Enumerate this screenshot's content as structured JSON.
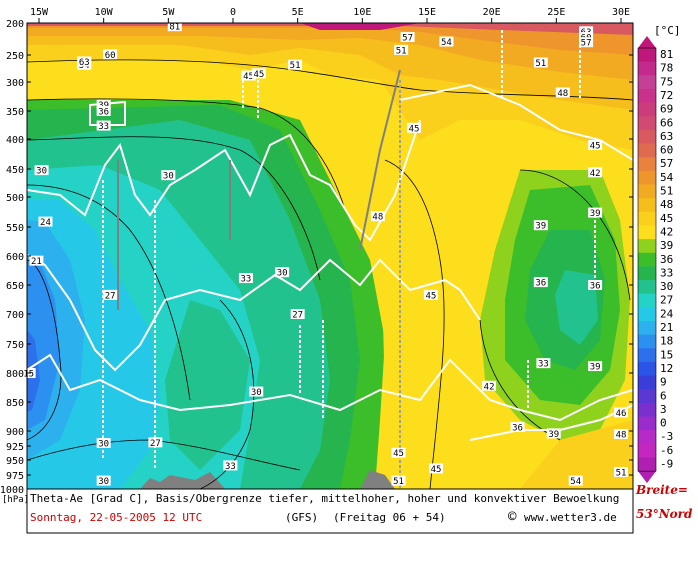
{
  "chart_data": {
    "type": "heatmap",
    "x_ticks": [
      "15W",
      "10W",
      "5W",
      "0",
      "5E",
      "10E",
      "15E",
      "20E",
      "25E",
      "30E"
    ],
    "y_ticks": [
      "200",
      "250",
      "300",
      "350",
      "400",
      "450",
      "500",
      "550",
      "600",
      "650",
      "700",
      "750",
      "800",
      "850",
      "900",
      "925",
      "950",
      "975",
      "1000"
    ],
    "y_unit": "[hPa]",
    "colorbar_unit": "[°C]",
    "colorbar_values": [
      "81",
      "78",
      "75",
      "72",
      "69",
      "66",
      "63",
      "60",
      "57",
      "54",
      "51",
      "48",
      "45",
      "42",
      "39",
      "36",
      "33",
      "30",
      "27",
      "24",
      "21",
      "18",
      "15",
      "12",
      "9",
      "6",
      "3",
      "0",
      "-3",
      "-6",
      "-9"
    ],
    "colorbar_colors": [
      "#c0187a",
      "#c42a8c",
      "#c44096",
      "#c8328a",
      "#cc3c7c",
      "#d04a74",
      "#d85a60",
      "#e06a50",
      "#e8823c",
      "#ee962c",
      "#f2aa22",
      "#f6be1c",
      "#fad01c",
      "#fcde1c",
      "#8ed21e",
      "#3cbe2a",
      "#26b44e",
      "#22c28e",
      "#24d2c6",
      "#26c8e8",
      "#2cb0ee",
      "#2c90f0",
      "#2c70ec",
      "#2c54e6",
      "#3a3ed8",
      "#5a38d2",
      "#7a30ce",
      "#9a2ccc",
      "#b82ac8",
      "#c426c0",
      "#b020b0"
    ],
    "contour_labels": [
      {
        "t": "81",
        "x": -4.5,
        "p": 205
      },
      {
        "t": "57",
        "x": 13.5,
        "p": 222
      },
      {
        "t": "54",
        "x": 16.5,
        "p": 229
      },
      {
        "t": "51",
        "x": 13.0,
        "p": 242
      },
      {
        "t": "54",
        "x": -11.5,
        "p": 268
      },
      {
        "t": "63",
        "x": -11.5,
        "p": 262
      },
      {
        "t": "60",
        "x": -9.5,
        "p": 249
      },
      {
        "t": "63",
        "x": 27.3,
        "p": 213
      },
      {
        "t": "60",
        "x": 27.3,
        "p": 222
      },
      {
        "t": "57",
        "x": 27.3,
        "p": 230
      },
      {
        "t": "51",
        "x": 23.8,
        "p": 264
      },
      {
        "t": "48",
        "x": 25.5,
        "p": 318
      },
      {
        "t": "51",
        "x": 4.8,
        "p": 268
      },
      {
        "t": "45",
        "x": 1.2,
        "p": 288
      },
      {
        "t": "45",
        "x": 2.0,
        "p": 284
      },
      {
        "t": "45",
        "x": 14.0,
        "p": 380
      },
      {
        "t": "39",
        "x": -10.0,
        "p": 339
      },
      {
        "t": "36",
        "x": -10.0,
        "p": 350
      },
      {
        "t": "33",
        "x": -10.0,
        "p": 376
      },
      {
        "t": "30",
        "x": -14.8,
        "p": 452
      },
      {
        "t": "30",
        "x": -5.0,
        "p": 461
      },
      {
        "t": "24",
        "x": -14.5,
        "p": 541
      },
      {
        "t": "21",
        "x": -15.2,
        "p": 608
      },
      {
        "t": "27",
        "x": -9.5,
        "p": 667
      },
      {
        "t": "48",
        "x": 11.2,
        "p": 532
      },
      {
        "t": "45",
        "x": 28.0,
        "p": 410
      },
      {
        "t": "42",
        "x": 28.0,
        "p": 456
      },
      {
        "t": "39",
        "x": 28.0,
        "p": 526
      },
      {
        "t": "39",
        "x": 23.8,
        "p": 547
      },
      {
        "t": "36",
        "x": 23.8,
        "p": 645
      },
      {
        "t": "36",
        "x": 28.0,
        "p": 650
      },
      {
        "t": "33",
        "x": 1.0,
        "p": 638
      },
      {
        "t": "30",
        "x": 3.8,
        "p": 628
      },
      {
        "t": "27",
        "x": 5.0,
        "p": 700
      },
      {
        "t": "45",
        "x": 15.3,
        "p": 667
      },
      {
        "t": "33",
        "x": 24.0,
        "p": 783
      },
      {
        "t": "39",
        "x": 28.0,
        "p": 788
      },
      {
        "t": "42",
        "x": 19.8,
        "p": 822
      },
      {
        "t": "36",
        "x": 22.0,
        "p": 893
      },
      {
        "t": "39",
        "x": 24.8,
        "p": 904
      },
      {
        "t": "46",
        "x": 30.0,
        "p": 868
      },
      {
        "t": "48",
        "x": 30.0,
        "p": 905
      },
      {
        "t": "30",
        "x": 1.8,
        "p": 832
      },
      {
        "t": "30",
        "x": -10.0,
        "p": 920
      },
      {
        "t": "27",
        "x": -6.0,
        "p": 919
      },
      {
        "t": "33",
        "x": -0.2,
        "p": 959
      },
      {
        "t": "45",
        "x": 12.8,
        "p": 937
      },
      {
        "t": "45",
        "x": 15.7,
        "p": 964
      },
      {
        "t": "51",
        "x": 12.8,
        "p": 985
      },
      {
        "t": "51",
        "x": 30.0,
        "p": 970
      },
      {
        "t": "54",
        "x": 26.5,
        "p": 985
      },
      {
        "t": "15",
        "x": -15.8,
        "p": 800
      },
      {
        "t": "30",
        "x": -10.0,
        "p": 985
      }
    ]
  },
  "caption": {
    "line1": "Theta-Ae [Grad C], Basis/Obergrenze tiefer, mittelhoher, hoher und konvektiver Bewoelkung",
    "date": "Sonntag, 22-05-2005  12 UTC",
    "model": "(GFS)",
    "run": "(Freitag 06 + 54)",
    "copyright": "©",
    "site": "www.wetter3.de",
    "breite_label": "Breite=",
    "breite_value": "53°Nord"
  }
}
